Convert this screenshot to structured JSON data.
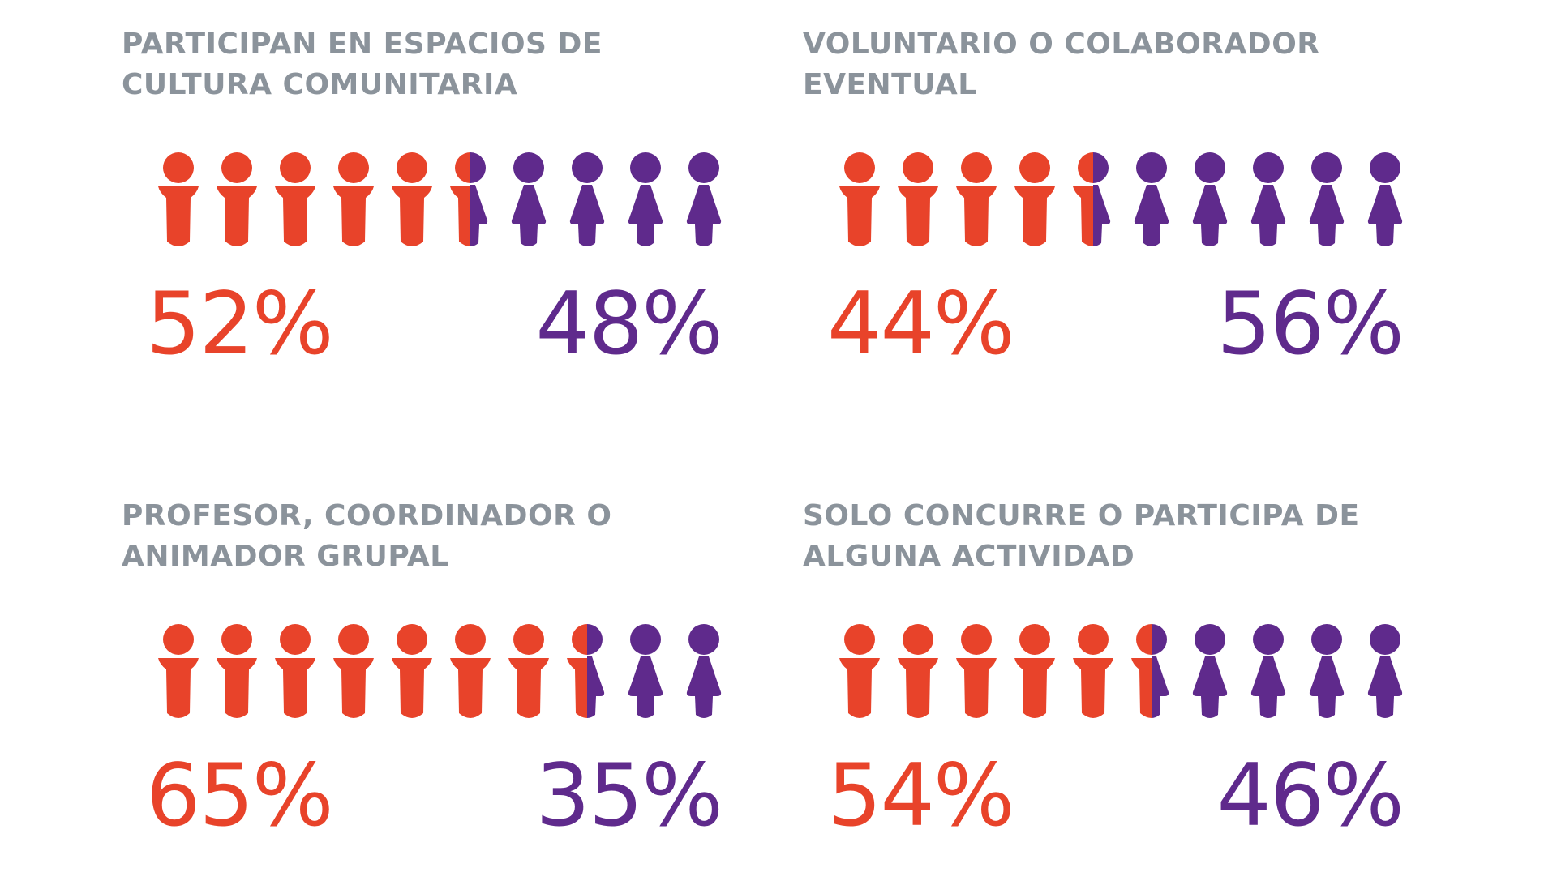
{
  "colors": {
    "left_series": "#e8432a",
    "right_series": "#5f2a8c",
    "title": "#8b939b"
  },
  "chart_data": [
    {
      "type": "pictograph",
      "title": "PARTICIPAN EN ESPACIOS DE CULTURA COMUNITARIA",
      "icon_count": 10,
      "series": [
        {
          "values": [
            52
          ],
          "label": "52%",
          "icon": "male-figure-icon"
        },
        {
          "values": [
            48
          ],
          "label": "48%",
          "icon": "female-figure-icon"
        }
      ]
    },
    {
      "type": "pictograph",
      "title": "VOLUNTARIO O COLABORADOR EVENTUAL",
      "icon_count": 10,
      "series": [
        {
          "values": [
            44
          ],
          "label": "44%",
          "icon": "male-figure-icon"
        },
        {
          "values": [
            56
          ],
          "label": "56%",
          "icon": "female-figure-icon"
        }
      ]
    },
    {
      "type": "pictograph",
      "title": "PROFESOR, COORDINADOR O ANIMADOR GRUPAL",
      "icon_count": 10,
      "series": [
        {
          "values": [
            65
          ],
          "label": "65%",
          "icon": "male-figure-icon"
        },
        {
          "values": [
            35
          ],
          "label": "35%",
          "icon": "female-figure-icon"
        }
      ]
    },
    {
      "type": "pictograph",
      "title": "SOLO CONCURRE O PARTICIPA DE ALGUNA ACTIVIDAD",
      "icon_count": 10,
      "series": [
        {
          "values": [
            54
          ],
          "label": "54%",
          "icon": "male-figure-icon"
        },
        {
          "values": [
            46
          ],
          "label": "46%",
          "icon": "female-figure-icon"
        }
      ]
    }
  ]
}
